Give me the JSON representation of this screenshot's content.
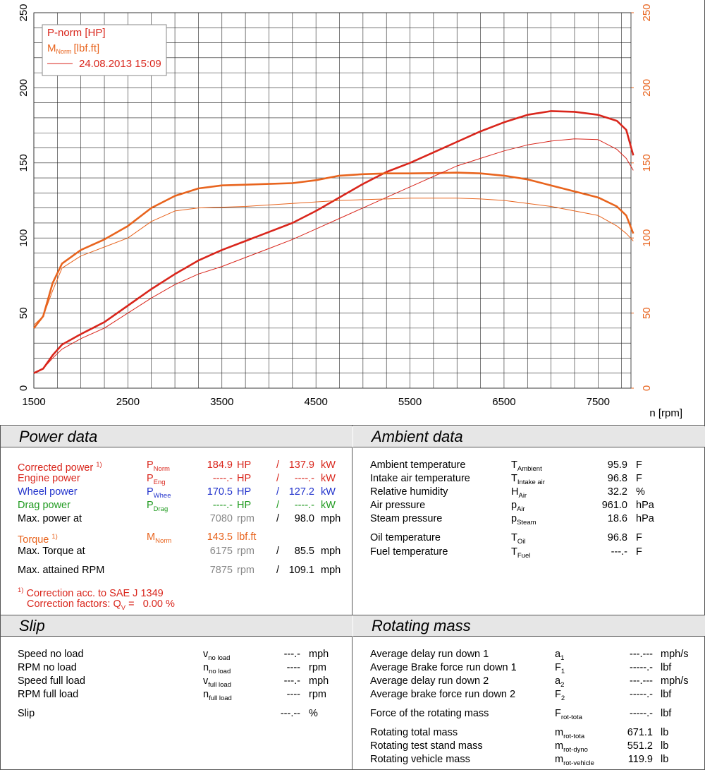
{
  "chart_data": {
    "type": "line",
    "x": [
      1500,
      1600,
      1700,
      1800,
      2000,
      2250,
      2500,
      2750,
      3000,
      3250,
      3500,
      3750,
      4000,
      4250,
      4500,
      4750,
      5000,
      5250,
      5500,
      5750,
      6000,
      6250,
      6500,
      6750,
      7000,
      7250,
      7500,
      7700,
      7800,
      7875
    ],
    "series": [
      {
        "name": "P-norm [HP]",
        "color": "#d9261c",
        "line_width": 2.6,
        "values": [
          10,
          13,
          22,
          29,
          36,
          44,
          55,
          66,
          76,
          85,
          92,
          98,
          104,
          110,
          118,
          127,
          136,
          144,
          150,
          157,
          164,
          171,
          177,
          182,
          184.5,
          184,
          182,
          178,
          172,
          155
        ]
      },
      {
        "name": "M",
        "name_sub": "Norm",
        "name_unit": "[lbf.ft]",
        "color": "#e8641e",
        "line_width": 2.6,
        "axis": "y2",
        "values": [
          40,
          48,
          70,
          83,
          92,
          99,
          108,
          120,
          128,
          133,
          135,
          135.5,
          136,
          136.5,
          138.5,
          141.5,
          142.5,
          143,
          143,
          143.2,
          143.5,
          143,
          141.5,
          139,
          135,
          131,
          127,
          121,
          115,
          103
        ]
      },
      {
        "name": "24.08.2013 15:09",
        "color": "#d9261c",
        "line_width": 1,
        "values": [
          10,
          13,
          20,
          26,
          33,
          40,
          50,
          60,
          69,
          76,
          81,
          87,
          93,
          99,
          106,
          113,
          120,
          127,
          134,
          141,
          148,
          153,
          158,
          162,
          164.5,
          166,
          165.5,
          159,
          153,
          145
        ]
      },
      {
        "color": "#e8641e",
        "line_width": 1,
        "axis": "y2",
        "values": [
          42,
          48,
          65,
          80,
          88,
          94,
          100,
          111,
          118,
          120,
          120.5,
          121,
          122,
          123,
          124,
          125,
          125.5,
          126,
          126.5,
          126.5,
          126.5,
          126,
          125,
          123,
          121,
          118,
          115,
          108,
          103,
          98
        ]
      }
    ],
    "xlim": [
      1500,
      7850
    ],
    "xticks": [
      1500,
      2500,
      3500,
      4500,
      5500,
      6500,
      7500
    ],
    "xminor": [
      1750,
      2000,
      2250,
      2750,
      3000,
      3250,
      3750,
      4000,
      4250,
      4750,
      5000,
      5250,
      5750,
      6000,
      6250,
      6750,
      7000,
      7250,
      7750
    ],
    "ylim": [
      0,
      250
    ],
    "yticks": [
      0,
      50,
      100,
      150,
      200,
      250
    ],
    "yminor": [
      10,
      20,
      30,
      40,
      60,
      70,
      80,
      90,
      110,
      120,
      130,
      140,
      160,
      170,
      180,
      190,
      210,
      220,
      230,
      240
    ],
    "y2lim": [
      0,
      250
    ],
    "y2ticks": [
      0,
      50,
      100,
      150,
      200,
      250
    ],
    "y2color": "#e8641e",
    "xlabel": "n [rpm]",
    "grid": true
  },
  "power_data": {
    "title": "Power data",
    "rows": [
      {
        "label": "Corrected power",
        "label_sup": "1)",
        "sym": "P",
        "sym_sub": "Norm",
        "v1": "184.9",
        "u1": "HP",
        "sep": "/",
        "v2": "137.9",
        "u2": "kW",
        "color": "#d9261c"
      },
      {
        "label": "Engine power",
        "sym": "P",
        "sym_sub": "Eng",
        "v1": "----.-",
        "u1": "HP",
        "sep": "/",
        "v2": "----.-",
        "u2": "kW",
        "color": "#d9261c"
      },
      {
        "label": "Wheel power",
        "sym": "P",
        "sym_sub": "Whee",
        "v1": "170.5",
        "u1": "HP",
        "sep": "/",
        "v2": "127.2",
        "u2": "kW",
        "color": "#2233cc"
      },
      {
        "label": "Drag power",
        "sym": "P",
        "sym_sub": "Drag",
        "v1": "----.-",
        "u1": "HP",
        "sep": "/",
        "v2": "----.-",
        "u2": "kW",
        "color": "#1f9a1f"
      },
      {
        "label": "Max. power at",
        "v1": "7080",
        "u1": "rpm",
        "sep": "/",
        "v2": "98.0",
        "u2": "mph",
        "color": "#000000",
        "muted": true
      },
      {
        "label": "Torque",
        "label_sup": "1)",
        "sym": "M",
        "sym_sub": "Norm",
        "v1": "143.5",
        "u1": "lbf.ft",
        "color": "#e8641e"
      },
      {
        "label": "Max. Torque at",
        "v1": "6175",
        "u1": "rpm",
        "sep": "/",
        "v2": "85.5",
        "u2": "mph",
        "color": "#000000",
        "muted": true
      },
      {
        "label": "Max. attained RPM",
        "v1": "7875",
        "u1": "rpm",
        "sep": "/",
        "v2": "109.1",
        "u2": "mph",
        "color": "#000000",
        "muted": true
      }
    ],
    "footnotes": [
      {
        "sup": "1)",
        "text": "Correction acc. to SAE J 1349"
      },
      {
        "text": "Correction factors: Q",
        "sub": "V",
        "tail": " =   0.00 %"
      }
    ]
  },
  "ambient_data": {
    "title": "Ambient data",
    "rows": [
      {
        "label": "Ambient temperature",
        "sym": "T",
        "sym_sub": "Ambient",
        "v1": "95.9",
        "u1": "F"
      },
      {
        "label": "Intake air temperature",
        "sym": "T",
        "sym_sub": "Intake air",
        "v1": "96.8",
        "u1": "F"
      },
      {
        "label": "Relative humidity",
        "sym": "H",
        "sym_sub": "Air",
        "v1": "32.2",
        "u1": "%"
      },
      {
        "label": "Air pressure",
        "sym": "p",
        "sym_sub": "Air",
        "v1": "961.0",
        "u1": "hPa"
      },
      {
        "label": "Steam pressure",
        "sym": "p",
        "sym_sub": "Steam",
        "v1": "18.6",
        "u1": "hPa"
      },
      {
        "label": "Oil temperature",
        "sym": "T",
        "sym_sub": "Oil",
        "v1": "96.8",
        "u1": "F"
      },
      {
        "label": "Fuel temperature",
        "sym": "T",
        "sym_sub": "Fuel",
        "v1": "---.-",
        "u1": "F"
      }
    ]
  },
  "slip": {
    "title": "Slip",
    "rows": [
      {
        "label": "Speed no load",
        "sym": "v",
        "sym_sub": "no load",
        "v1": "---.-",
        "u1": "mph"
      },
      {
        "label": "RPM no load",
        "sym": "n",
        "sym_sub": "no load",
        "v1": "----",
        "u1": "rpm"
      },
      {
        "label": "Speed full load",
        "sym": "v",
        "sym_sub": "full load",
        "v1": "---.-",
        "u1": "mph"
      },
      {
        "label": "RPM full load",
        "sym": "n",
        "sym_sub": "full load",
        "v1": "----",
        "u1": "rpm"
      },
      {
        "label": "Slip",
        "v1": "---.--",
        "u1": "%"
      }
    ]
  },
  "rotating_mass": {
    "title": "Rotating mass",
    "rows": [
      {
        "label": "Average delay run down 1",
        "sym": "a",
        "sym_sub": "1",
        "v1": "---.---",
        "u1": "mph/s"
      },
      {
        "label": "Average Brake force run down 1",
        "sym": "F",
        "sym_sub": "1",
        "v1": "-----.-",
        "u1": "lbf"
      },
      {
        "label": "Average delay run down 2",
        "sym": "a",
        "sym_sub": "2",
        "v1": "---.---",
        "u1": "mph/s"
      },
      {
        "label": "Average brake force run down 2",
        "sym": "F",
        "sym_sub": "2",
        "v1": "-----.-",
        "u1": "lbf"
      },
      {
        "label": "Force of the rotating mass",
        "sym": "F",
        "sym_sub": "rot-tota",
        "v1": "-----.-",
        "u1": "lbf"
      },
      {
        "label": "Rotating total mass",
        "sym": "m",
        "sym_sub": "rot-tota",
        "v1": "671.1",
        "u1": "lb"
      },
      {
        "label": "Rotating test stand mass",
        "sym": "m",
        "sym_sub": "rot-dyno",
        "v1": "551.2",
        "u1": "lb"
      },
      {
        "label": "Rotating vehicle mass",
        "sym": "m",
        "sym_sub": "rot-vehicle",
        "v1": "119.9",
        "u1": "lb"
      }
    ]
  }
}
